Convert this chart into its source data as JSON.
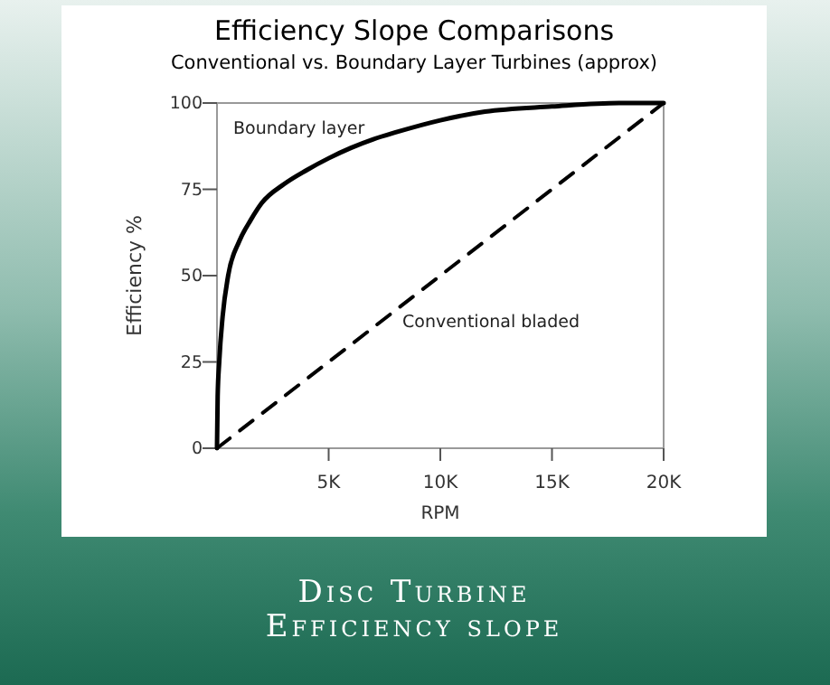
{
  "chart_data": {
    "type": "line",
    "title": "Efficiency Slope Comparisons",
    "subtitle": "Conventional vs. Boundary Layer Turbines (approx)",
    "xlabel": "RPM",
    "ylabel": "Efficiency  %",
    "annotations": [
      "Disc Turbine",
      "Efficiency slope"
    ],
    "xlim": [
      0,
      20000
    ],
    "ylim": [
      0,
      100
    ],
    "xticks": [
      {
        "value": 5000,
        "label": "5K"
      },
      {
        "value": 10000,
        "label": "10K"
      },
      {
        "value": 15000,
        "label": "15K"
      },
      {
        "value": 20000,
        "label": "20K"
      }
    ],
    "yticks": [
      0,
      25,
      50,
      75,
      100
    ],
    "grid": false,
    "series": [
      {
        "name": "Boundary layer",
        "color": "#000000",
        "line_style": "solid",
        "x": [
          0,
          30,
          100,
          250,
          500,
          1000,
          1500,
          2000,
          3000,
          4000,
          5000,
          6000,
          7000,
          8000,
          10000,
          12000,
          15000,
          18000,
          20000
        ],
        "values": [
          0,
          15,
          25,
          38,
          50,
          60,
          66,
          71,
          76.5,
          80.5,
          84,
          87,
          89.5,
          91.5,
          95,
          97.5,
          99,
          100,
          100
        ]
      },
      {
        "name": "Conventional bladed",
        "color": "#000000",
        "line_style": "dashed",
        "x": [
          0,
          20000
        ],
        "values": [
          0,
          100
        ]
      }
    ]
  }
}
